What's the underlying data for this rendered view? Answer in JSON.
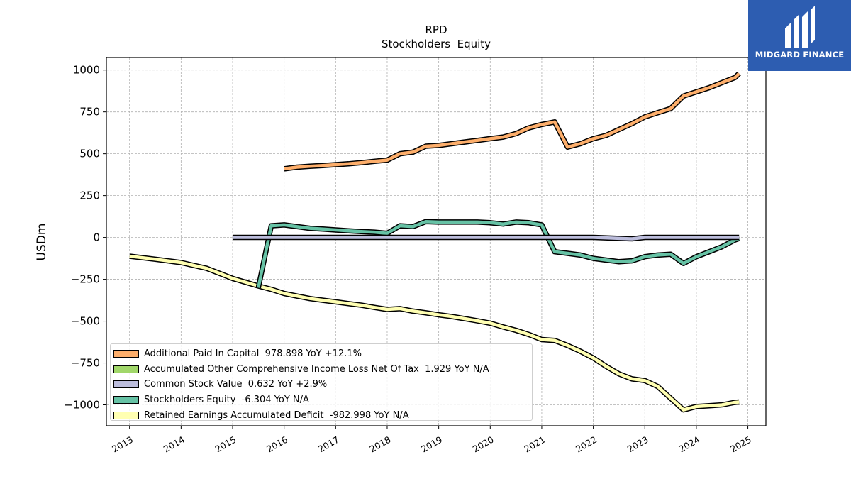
{
  "brand": {
    "name": "MIDGARD FINANCE",
    "color": "#2d5db1"
  },
  "chart_data": {
    "type": "line",
    "title": "RPD",
    "subtitle": "Stockholders  Equity",
    "ylabel": "USDm",
    "xlabel": "",
    "xlim": [
      2012.55,
      2025.35
    ],
    "ylim": [
      -1125,
      1075
    ],
    "x_ticks": [
      "2013",
      "2014",
      "2015",
      "2016",
      "2017",
      "2018",
      "2019",
      "2020",
      "2021",
      "2022",
      "2023",
      "2024",
      "2025"
    ],
    "y_ticks": [
      1000,
      750,
      500,
      250,
      0,
      -250,
      -500,
      -750,
      -1000
    ],
    "y_tick_labels": [
      "1000",
      "750",
      "500",
      "250",
      "0",
      "−250",
      "−500",
      "−750",
      "−1000"
    ],
    "grid": true,
    "legend_position": "lower-left",
    "series": [
      {
        "name": "Additional Paid In Capital",
        "legend": "Additional Paid In Capital  978.898 YoY +12.1%",
        "color": "#fdae6b",
        "points": [
          [
            2016.0,
            410
          ],
          [
            2016.25,
            420
          ],
          [
            2016.5,
            425
          ],
          [
            2016.75,
            430
          ],
          [
            2017.0,
            435
          ],
          [
            2017.25,
            440
          ],
          [
            2017.5,
            447
          ],
          [
            2017.75,
            455
          ],
          [
            2018.0,
            462
          ],
          [
            2018.25,
            500
          ],
          [
            2018.5,
            510
          ],
          [
            2018.75,
            545
          ],
          [
            2019.0,
            550
          ],
          [
            2019.25,
            560
          ],
          [
            2019.5,
            570
          ],
          [
            2019.75,
            580
          ],
          [
            2020.0,
            590
          ],
          [
            2020.25,
            600
          ],
          [
            2020.5,
            620
          ],
          [
            2020.75,
            655
          ],
          [
            2021.0,
            675
          ],
          [
            2021.25,
            690
          ],
          [
            2021.5,
            540
          ],
          [
            2021.75,
            560
          ],
          [
            2022.0,
            590
          ],
          [
            2022.25,
            610
          ],
          [
            2022.5,
            645
          ],
          [
            2022.75,
            680
          ],
          [
            2023.0,
            720
          ],
          [
            2023.25,
            745
          ],
          [
            2023.5,
            770
          ],
          [
            2023.75,
            845
          ],
          [
            2024.0,
            870
          ],
          [
            2024.25,
            895
          ],
          [
            2024.5,
            925
          ],
          [
            2024.75,
            955
          ],
          [
            2024.83,
            979
          ]
        ]
      },
      {
        "name": "Accumulated Other Comprehensive Income Loss Net Of Tax",
        "legend": "Accumulated Other Comprehensive Income Loss Net Of Tax  1.929 YoY N/A",
        "color": "#a1d76a",
        "points": []
      },
      {
        "name": "Common Stock Value",
        "legend": "Common Stock Value  0.632 YoY +2.9%",
        "color": "#bcbddc",
        "points": [
          [
            2015.0,
            0.4
          ],
          [
            2016.0,
            0.45
          ],
          [
            2017.0,
            0.47
          ],
          [
            2018.0,
            0.5
          ],
          [
            2019.0,
            0.52
          ],
          [
            2020.0,
            0.54
          ],
          [
            2021.0,
            0.58
          ],
          [
            2022.0,
            0.6
          ],
          [
            2022.75,
            -8
          ],
          [
            2023.0,
            0.6
          ],
          [
            2024.0,
            0.62
          ],
          [
            2024.83,
            0.63
          ]
        ]
      },
      {
        "name": "Stockholders Equity",
        "legend": "Stockholders Equity  -6.304 YoY N/A",
        "color": "#66c2a5",
        "points": [
          [
            2015.5,
            -300
          ],
          [
            2015.75,
            70
          ],
          [
            2016.0,
            75
          ],
          [
            2016.25,
            65
          ],
          [
            2016.5,
            55
          ],
          [
            2016.75,
            50
          ],
          [
            2017.0,
            45
          ],
          [
            2017.25,
            40
          ],
          [
            2017.5,
            35
          ],
          [
            2017.75,
            32
          ],
          [
            2018.0,
            25
          ],
          [
            2018.25,
            70
          ],
          [
            2018.5,
            65
          ],
          [
            2018.75,
            95
          ],
          [
            2019.0,
            92
          ],
          [
            2019.25,
            92
          ],
          [
            2019.5,
            92
          ],
          [
            2019.75,
            92
          ],
          [
            2020.0,
            88
          ],
          [
            2020.25,
            80
          ],
          [
            2020.5,
            92
          ],
          [
            2020.75,
            88
          ],
          [
            2021.0,
            75
          ],
          [
            2021.25,
            -85
          ],
          [
            2021.5,
            -95
          ],
          [
            2021.75,
            -105
          ],
          [
            2022.0,
            -125
          ],
          [
            2022.25,
            -135
          ],
          [
            2022.5,
            -145
          ],
          [
            2022.75,
            -140
          ],
          [
            2023.0,
            -115
          ],
          [
            2023.25,
            -105
          ],
          [
            2023.5,
            -100
          ],
          [
            2023.75,
            -155
          ],
          [
            2024.0,
            -115
          ],
          [
            2024.25,
            -85
          ],
          [
            2024.5,
            -55
          ],
          [
            2024.75,
            -15
          ],
          [
            2024.83,
            -6.3
          ]
        ]
      },
      {
        "name": "Retained Earnings Accumulated Deficit",
        "legend": "Retained Earnings Accumulated Deficit  -982.998 YoY N/A",
        "color": "#ffffb2",
        "points": [
          [
            2013.0,
            -112
          ],
          [
            2013.5,
            -130
          ],
          [
            2014.0,
            -150
          ],
          [
            2014.5,
            -185
          ],
          [
            2015.0,
            -245
          ],
          [
            2015.5,
            -290
          ],
          [
            2015.75,
            -310
          ],
          [
            2016.0,
            -335
          ],
          [
            2016.25,
            -350
          ],
          [
            2016.5,
            -365
          ],
          [
            2016.75,
            -375
          ],
          [
            2017.0,
            -385
          ],
          [
            2017.25,
            -395
          ],
          [
            2017.5,
            -405
          ],
          [
            2017.75,
            -418
          ],
          [
            2018.0,
            -430
          ],
          [
            2018.25,
            -425
          ],
          [
            2018.5,
            -440
          ],
          [
            2018.75,
            -450
          ],
          [
            2019.0,
            -462
          ],
          [
            2019.25,
            -472
          ],
          [
            2019.5,
            -485
          ],
          [
            2019.75,
            -498
          ],
          [
            2020.0,
            -512
          ],
          [
            2020.25,
            -535
          ],
          [
            2020.5,
            -555
          ],
          [
            2020.75,
            -580
          ],
          [
            2021.0,
            -610
          ],
          [
            2021.25,
            -615
          ],
          [
            2021.5,
            -645
          ],
          [
            2021.75,
            -680
          ],
          [
            2022.0,
            -720
          ],
          [
            2022.25,
            -770
          ],
          [
            2022.5,
            -815
          ],
          [
            2022.75,
            -845
          ],
          [
            2023.0,
            -855
          ],
          [
            2023.25,
            -890
          ],
          [
            2023.5,
            -960
          ],
          [
            2023.75,
            -1030
          ],
          [
            2024.0,
            -1010
          ],
          [
            2024.25,
            -1005
          ],
          [
            2024.5,
            -1000
          ],
          [
            2024.75,
            -985
          ],
          [
            2024.83,
            -983
          ]
        ]
      }
    ]
  }
}
